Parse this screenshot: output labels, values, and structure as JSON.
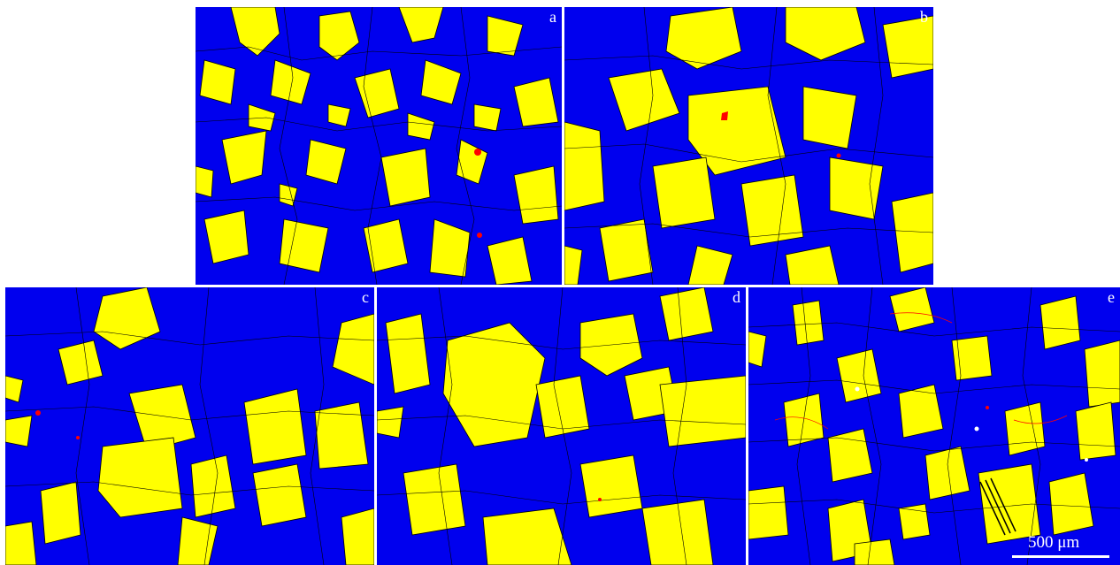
{
  "colors": {
    "phase_blue": "#0000ee",
    "phase_yellow": "#ffff00",
    "boundary": "#000000",
    "special_boundary": "#ff0000",
    "label": "#ffffff"
  },
  "panels": [
    {
      "id": "a",
      "label": "a"
    },
    {
      "id": "b",
      "label": "b"
    },
    {
      "id": "c",
      "label": "c"
    },
    {
      "id": "d",
      "label": "d"
    },
    {
      "id": "e",
      "label": "e"
    }
  ],
  "scale_bar": {
    "label": "500 μm"
  }
}
